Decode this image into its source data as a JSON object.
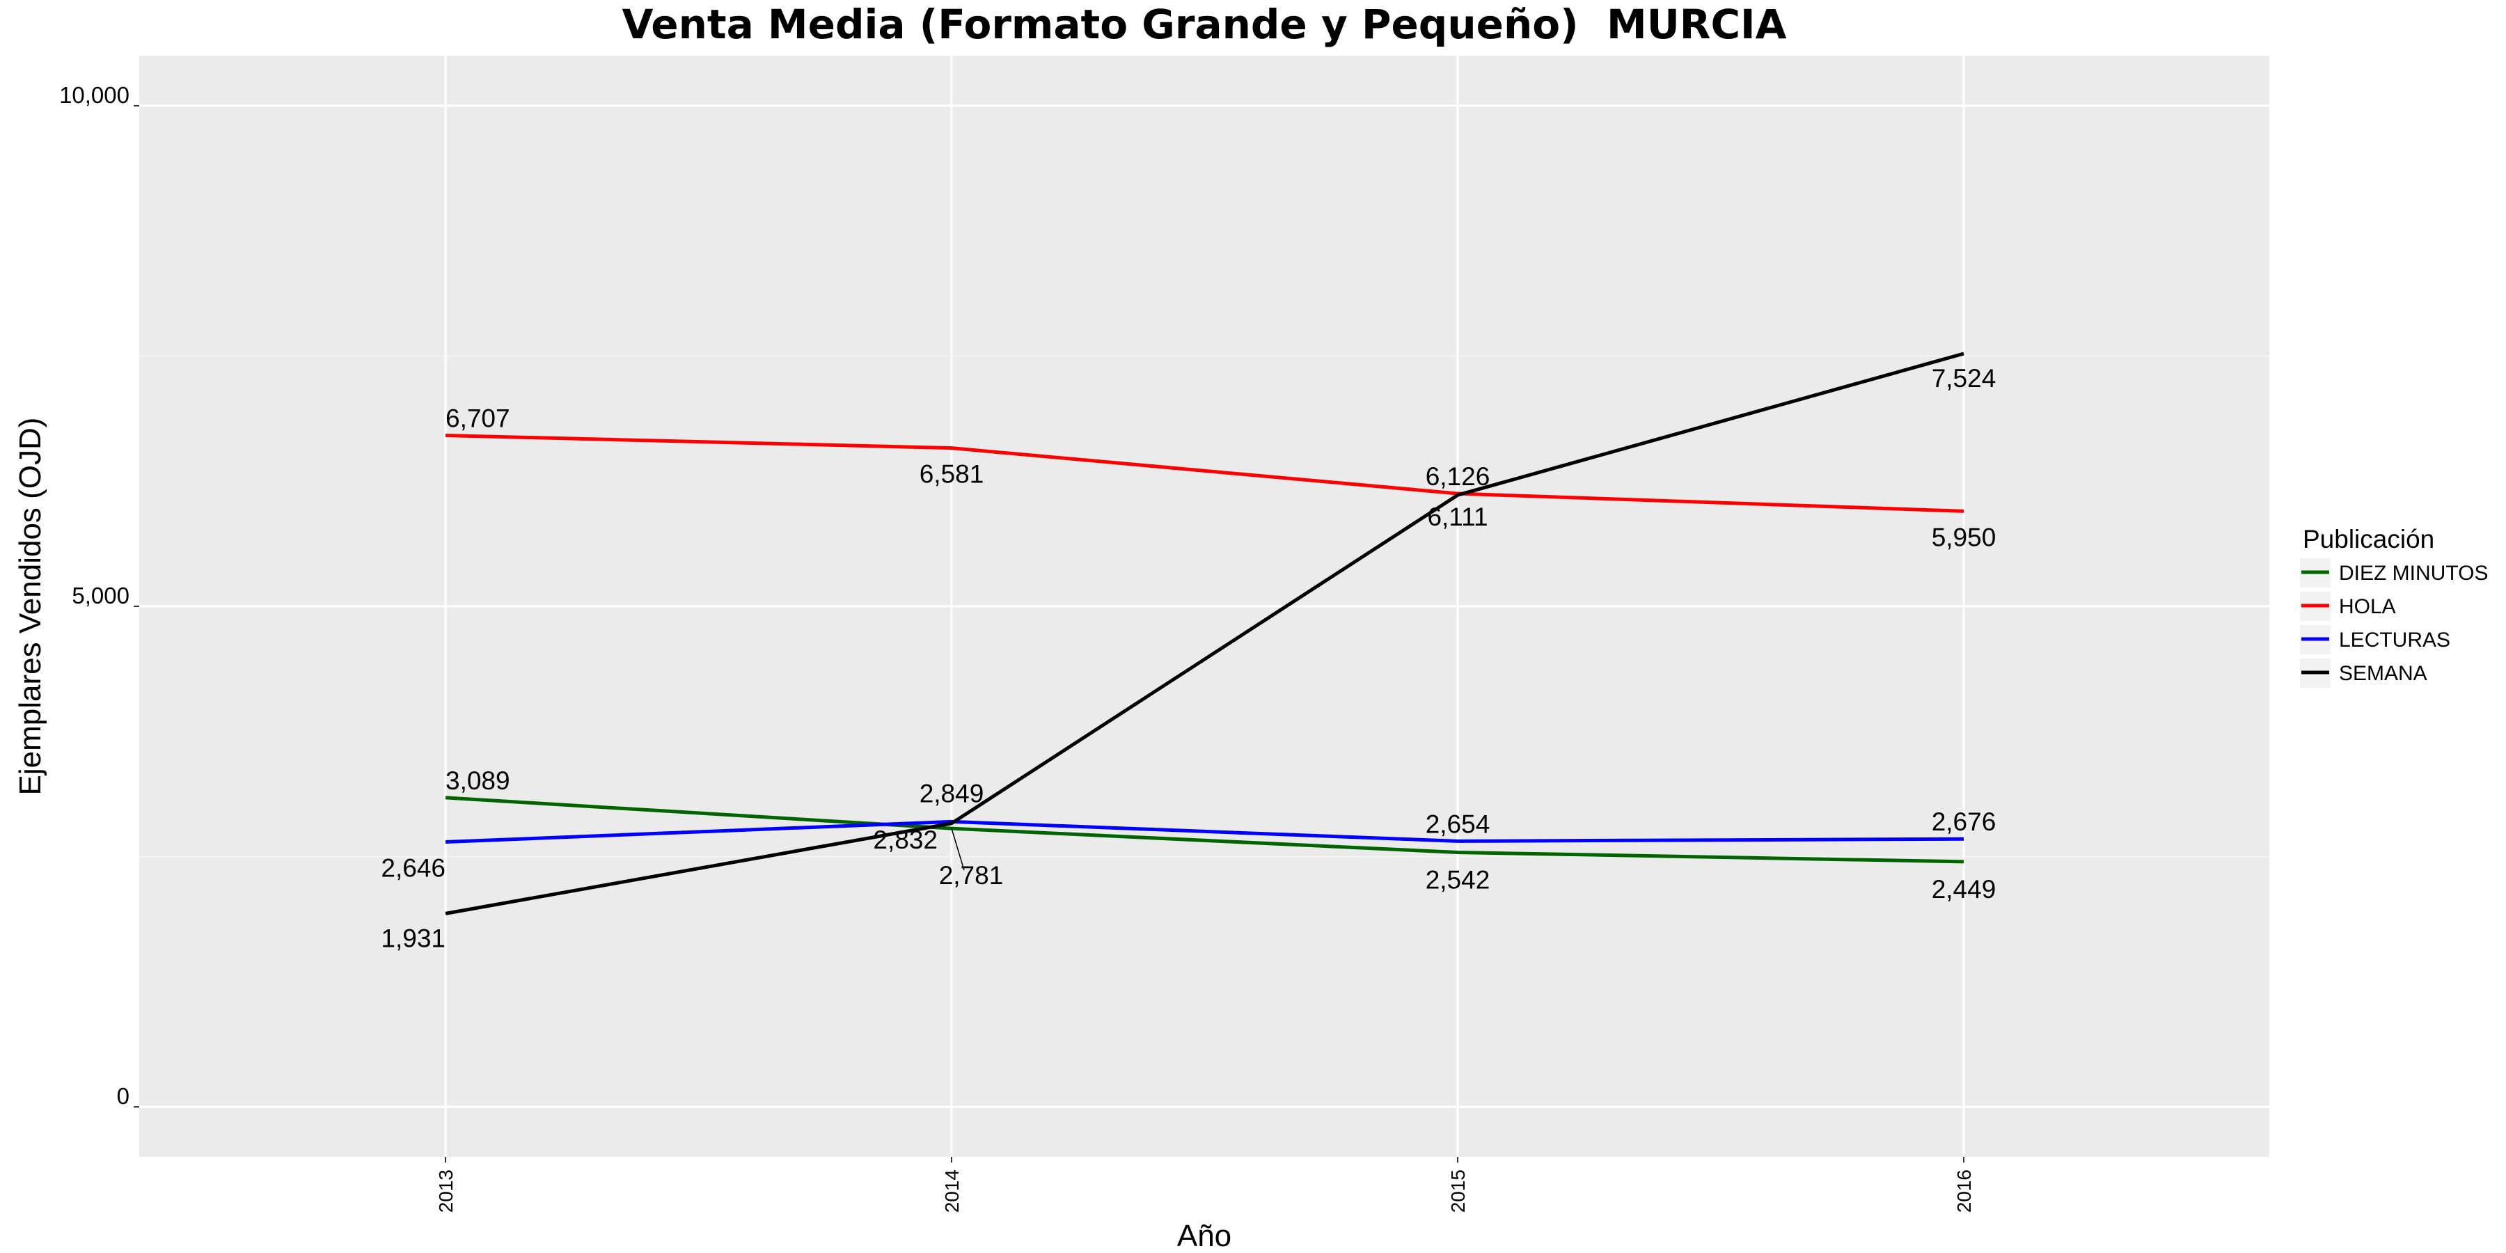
{
  "chart_data": {
    "type": "line",
    "title": "Venta Media (Formato Grande y Pequeño)  MURCIA",
    "xlabel": "Año",
    "ylabel": "Ejemplares Vendidos (OJD)",
    "x": [
      "2013",
      "2014",
      "2015",
      "2016"
    ],
    "ylim": [
      -500,
      10500
    ],
    "yticks": [
      0,
      5000,
      10000
    ],
    "ytick_labels": [
      "0",
      "5,000",
      "10,000"
    ],
    "grid": true,
    "background": "#ebebeb",
    "legend_title": "Publicación",
    "legend_position": "right",
    "series": [
      {
        "name": "DIEZ MINUTOS",
        "color": "#006400",
        "values": [
          3089,
          2781,
          2542,
          2449
        ],
        "labels": [
          "3,089",
          "2,781",
          "2,542",
          "2,449"
        ]
      },
      {
        "name": "HOLA",
        "color": "#ff0000",
        "values": [
          6707,
          6581,
          6126,
          5950
        ],
        "labels": [
          "6,707",
          "6,581",
          "6,126",
          "5,950"
        ]
      },
      {
        "name": "LECTURAS",
        "color": "#0000ff",
        "values": [
          2646,
          2849,
          2654,
          2676
        ],
        "labels": [
          "2,646",
          "2,849",
          "2,654",
          "2,676"
        ]
      },
      {
        "name": "SEMANA",
        "color": "#000000",
        "values": [
          1931,
          2832,
          6111,
          7524
        ],
        "labels": [
          "1,931",
          "2,832",
          "6,111",
          "7,524"
        ]
      }
    ]
  }
}
